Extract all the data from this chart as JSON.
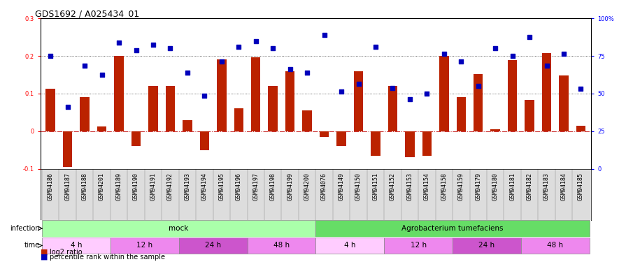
{
  "title": "GDS1692 / A025434_01",
  "samples": [
    "GSM94186",
    "GSM94187",
    "GSM94188",
    "GSM94201",
    "GSM94189",
    "GSM94190",
    "GSM94191",
    "GSM94192",
    "GSM94193",
    "GSM94194",
    "GSM94195",
    "GSM94196",
    "GSM94197",
    "GSM94198",
    "GSM94199",
    "GSM94200",
    "GSM94076",
    "GSM94149",
    "GSM94150",
    "GSM94151",
    "GSM94152",
    "GSM94153",
    "GSM94154",
    "GSM94158",
    "GSM94159",
    "GSM94179",
    "GSM94180",
    "GSM94181",
    "GSM94182",
    "GSM94183",
    "GSM94184",
    "GSM94185"
  ],
  "log2ratio": [
    0.112,
    -0.095,
    0.09,
    0.012,
    0.2,
    -0.04,
    0.121,
    0.12,
    0.03,
    -0.05,
    0.19,
    0.06,
    0.197,
    0.12,
    0.16,
    0.055,
    -0.015,
    -0.04,
    0.16,
    -0.065,
    0.121,
    -0.07,
    -0.065,
    0.2,
    0.09,
    0.152,
    0.005,
    0.189,
    0.083,
    0.207,
    0.148,
    0.015
  ],
  "percentile_left": [
    0.2,
    0.065,
    0.175,
    0.15,
    0.235,
    0.215,
    0.23,
    0.22,
    0.155,
    0.095,
    0.185,
    0.225,
    0.24,
    0.22,
    0.165,
    0.155,
    0.255,
    0.105,
    0.125,
    0.225,
    0.115,
    0.085,
    0.1,
    0.205,
    0.185,
    0.12,
    0.22,
    0.2,
    0.25,
    0.175,
    0.205,
    0.112
  ],
  "infection_mock_color": "#aaffaa",
  "infection_agro_color": "#66dd66",
  "time_colors": [
    "#ffccff",
    "#ee88ee",
    "#cc55cc",
    "#ee88ee",
    "#ffccff",
    "#ee88ee",
    "#cc55cc",
    "#ee88ee"
  ],
  "time_labels": [
    "4 h",
    "12 h",
    "24 h",
    "48 h",
    "4 h",
    "12 h",
    "24 h",
    "48 h"
  ],
  "time_starts": [
    0,
    4,
    8,
    12,
    16,
    20,
    24,
    28
  ],
  "time_ends": [
    4,
    8,
    12,
    16,
    20,
    24,
    28,
    32
  ],
  "ylim_left": [
    -0.1,
    0.3
  ],
  "left_ticks": [
    -0.1,
    0,
    0.1,
    0.2,
    0.3
  ],
  "right_ticks": [
    0,
    25,
    50,
    75,
    100
  ],
  "bar_color": "#bb2200",
  "dot_color": "#0000bb",
  "hline_color": "#cc3333",
  "grid_line_color": "#444444",
  "bg_color": "#ffffff",
  "title_fontsize": 9,
  "tick_fontsize": 6,
  "label_fontsize": 7,
  "annotation_fontsize": 7.5
}
